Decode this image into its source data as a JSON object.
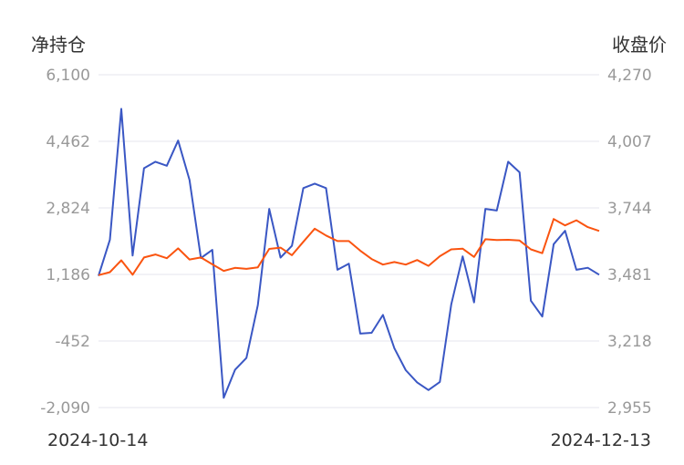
{
  "chart_data": {
    "type": "line",
    "left_axis": {
      "label": "净持仓",
      "ticks": [
        "6,100",
        "4,462",
        "2,824",
        "1,186",
        "-452",
        "-2,090"
      ],
      "ylim": [
        -2090,
        6100
      ]
    },
    "right_axis": {
      "label": "收盘价",
      "ticks": [
        "4,270",
        "4,007",
        "3,744",
        "3,481",
        "3,218",
        "2,955"
      ],
      "ylim": [
        2955,
        4270
      ]
    },
    "x_start_label": "2024-10-14",
    "x_end_label": "2024-12-13",
    "grid": true,
    "series": [
      {
        "axis": "left",
        "color": "#3a57c4",
        "values": [
          1150,
          2040,
          5260,
          1650,
          3800,
          3960,
          3860,
          4480,
          3510,
          1590,
          1790,
          -1850,
          -1160,
          -870,
          430,
          2800,
          1600,
          1890,
          3310,
          3420,
          3310,
          1300,
          1450,
          -270,
          -250,
          190,
          -630,
          -1170,
          -1470,
          -1660,
          -1460,
          450,
          1630,
          500,
          2800,
          2760,
          3960,
          3700,
          540,
          150,
          1930,
          2260,
          1300,
          1350,
          1180
        ]
      },
      {
        "axis": "right",
        "color": "#fa5410",
        "values": [
          3478,
          3490,
          3537,
          3480,
          3548,
          3560,
          3545,
          3584,
          3540,
          3548,
          3521,
          3495,
          3507,
          3503,
          3509,
          3582,
          3587,
          3557,
          3610,
          3662,
          3635,
          3613,
          3613,
          3575,
          3542,
          3520,
          3530,
          3520,
          3538,
          3515,
          3553,
          3580,
          3583,
          3550,
          3620,
          3617,
          3618,
          3615,
          3580,
          3565,
          3700,
          3675,
          3695,
          3668,
          3653
        ]
      }
    ]
  }
}
